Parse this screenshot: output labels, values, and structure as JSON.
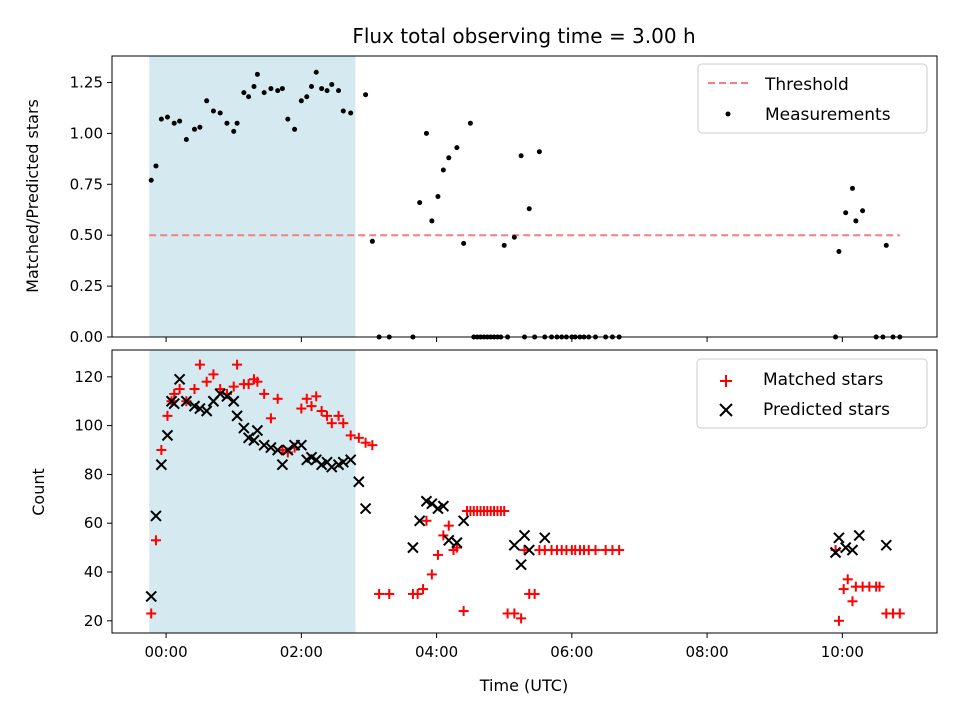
{
  "chart_data": [
    {
      "type": "scatter",
      "title": "Flux total observing time = 3.00 h",
      "xlabel": "",
      "ylabel": "Matched/Predicted stars",
      "x_unit": "hours (UTC)",
      "xlim": [
        -0.8,
        11.4
      ],
      "ylim": [
        0,
        1.38
      ],
      "yticks": [
        "0.00",
        "0.25",
        "0.50",
        "0.75",
        "1.00",
        "1.25"
      ],
      "ytick_values": [
        0,
        0.25,
        0.5,
        0.75,
        1.0,
        1.25
      ],
      "xticks": [
        "00:00",
        "02:00",
        "04:00",
        "06:00",
        "08:00",
        "10:00"
      ],
      "xtick_values": [
        0,
        2,
        4,
        6,
        8,
        10
      ],
      "shade_x": [
        -0.25,
        2.8
      ],
      "shade_color": "#d4eaf0",
      "grid": false,
      "legend": {
        "position": "top-right",
        "threshold_label": "Threshold",
        "measurements_label": "Measurements"
      },
      "threshold": {
        "name": "Threshold",
        "y": 0.5,
        "x": [
          -0.25,
          10.85
        ],
        "color": "#f28080"
      },
      "series": [
        {
          "name": "Measurements",
          "color": "#000000",
          "x": [
            -0.22,
            -0.15,
            -0.07,
            0.02,
            0.12,
            0.2,
            0.3,
            0.42,
            0.5,
            0.6,
            0.7,
            0.8,
            0.9,
            1.0,
            1.05,
            1.15,
            1.22,
            1.3,
            1.35,
            1.45,
            1.55,
            1.65,
            1.72,
            1.8,
            1.9,
            2.0,
            2.08,
            2.15,
            2.22,
            2.3,
            2.38,
            2.45,
            2.55,
            2.62,
            2.73,
            2.95,
            3.05,
            3.15,
            3.3,
            3.65,
            3.75,
            3.85,
            3.93,
            4.02,
            4.1,
            4.18,
            4.3,
            4.4,
            4.5,
            4.55,
            4.6,
            4.65,
            4.7,
            4.75,
            4.8,
            4.85,
            4.9,
            4.95,
            5.0,
            5.05,
            5.15,
            5.25,
            5.3,
            5.37,
            5.45,
            5.52,
            5.6,
            5.7,
            5.78,
            5.85,
            5.92,
            6.0,
            6.05,
            6.12,
            6.18,
            6.25,
            6.35,
            6.5,
            6.6,
            6.7,
            9.9,
            9.95,
            10.05,
            10.15,
            10.2,
            10.3,
            10.5,
            10.6,
            10.65,
            10.75,
            10.85
          ],
          "y": [
            0.77,
            0.84,
            1.07,
            1.08,
            1.05,
            1.06,
            0.97,
            1.02,
            1.03,
            1.16,
            1.11,
            1.1,
            1.05,
            1.01,
            1.05,
            1.2,
            1.18,
            1.23,
            1.29,
            1.2,
            1.22,
            1.21,
            1.22,
            1.07,
            1.02,
            1.16,
            1.18,
            1.23,
            1.3,
            1.22,
            1.21,
            1.24,
            1.21,
            1.11,
            1.1,
            1.19,
            0.47,
            0.0,
            0.0,
            0.0,
            0.66,
            1.0,
            0.57,
            0.69,
            0.82,
            0.88,
            0.93,
            0.46,
            1.05,
            0.0,
            0.0,
            0.0,
            0.0,
            0.0,
            0.0,
            0.0,
            0.0,
            0.0,
            0.45,
            0.0,
            0.49,
            0.89,
            0.0,
            0.63,
            0.0,
            0.91,
            0.0,
            0.0,
            0.0,
            0.0,
            0.0,
            0.0,
            0.0,
            0.0,
            0.0,
            0.0,
            0.0,
            0.0,
            0.0,
            0.0,
            0.0,
            0.42,
            0.61,
            0.73,
            0.57,
            0.62,
            0.0,
            0.0,
            0.45,
            0.0,
            0.0
          ]
        }
      ]
    },
    {
      "type": "scatter",
      "title": "",
      "xlabel": "Time (UTC)",
      "ylabel": "Count",
      "x_unit": "hours (UTC)",
      "xlim": [
        -0.8,
        11.4
      ],
      "ylim": [
        15,
        131
      ],
      "yticks": [
        "20",
        "40",
        "60",
        "80",
        "100",
        "120"
      ],
      "ytick_values": [
        20,
        40,
        60,
        80,
        100,
        120
      ],
      "xticks": [
        "00:00",
        "02:00",
        "04:00",
        "06:00",
        "08:00",
        "10:00"
      ],
      "xtick_values": [
        0,
        2,
        4,
        6,
        8,
        10
      ],
      "shade_x": [
        -0.25,
        2.8
      ],
      "shade_color": "#d4eaf0",
      "grid": false,
      "legend": {
        "position": "top-right",
        "matched_label": "Matched stars",
        "predicted_label": "Predicted stars"
      },
      "series": [
        {
          "name": "Matched stars",
          "marker": "plus",
          "color": "#ff0000",
          "x": [
            -0.22,
            -0.15,
            -0.07,
            0.02,
            0.08,
            0.12,
            0.2,
            0.3,
            0.42,
            0.5,
            0.6,
            0.7,
            0.8,
            0.9,
            1.0,
            1.05,
            1.15,
            1.22,
            1.3,
            1.35,
            1.45,
            1.55,
            1.65,
            1.72,
            1.8,
            1.9,
            2.0,
            2.08,
            2.15,
            2.22,
            2.3,
            2.38,
            2.45,
            2.55,
            2.62,
            2.73,
            2.85,
            2.95,
            3.05,
            3.15,
            3.3,
            3.65,
            3.72,
            3.8,
            3.85,
            3.93,
            4.02,
            4.1,
            4.18,
            4.25,
            4.3,
            4.4,
            4.45,
            4.5,
            4.55,
            4.6,
            4.65,
            4.7,
            4.75,
            4.8,
            4.85,
            4.9,
            4.95,
            5.0,
            5.05,
            5.15,
            5.25,
            5.3,
            5.37,
            5.45,
            5.52,
            5.6,
            5.7,
            5.78,
            5.85,
            5.92,
            6.0,
            6.05,
            6.12,
            6.18,
            6.25,
            6.35,
            6.5,
            6.6,
            6.7,
            9.9,
            9.95,
            10.02,
            10.08,
            10.15,
            10.2,
            10.3,
            10.4,
            10.5,
            10.55,
            10.65,
            10.75,
            10.85
          ],
          "y": [
            23,
            53,
            90,
            104,
            110,
            113,
            115,
            110,
            115,
            125,
            118,
            121,
            115,
            113,
            116,
            125,
            117,
            117,
            119,
            118,
            113,
            103,
            111,
            90,
            89,
            91,
            107,
            111,
            108,
            112,
            106,
            104,
            101,
            104,
            101,
            96,
            95,
            93,
            92,
            31,
            31,
            31,
            31,
            33,
            61,
            39,
            47,
            55,
            59,
            49,
            50,
            24,
            65,
            65,
            65,
            65,
            65,
            65,
            65,
            65,
            65,
            65,
            65,
            65,
            23,
            23,
            21,
            49,
            31,
            31,
            49,
            49,
            49,
            49,
            49,
            49,
            49,
            49,
            49,
            49,
            49,
            49,
            49,
            49,
            49,
            49,
            20,
            33,
            37,
            28,
            34,
            34,
            34,
            34,
            34,
            23,
            23,
            23
          ]
        },
        {
          "name": "Predicted stars",
          "marker": "x",
          "color": "#000000",
          "x": [
            -0.22,
            -0.15,
            -0.07,
            0.02,
            0.08,
            0.12,
            0.2,
            0.3,
            0.42,
            0.5,
            0.6,
            0.7,
            0.8,
            0.9,
            1.0,
            1.05,
            1.15,
            1.22,
            1.3,
            1.35,
            1.45,
            1.55,
            1.65,
            1.72,
            1.8,
            1.9,
            2.0,
            2.08,
            2.15,
            2.22,
            2.3,
            2.38,
            2.45,
            2.55,
            2.62,
            2.73,
            2.85,
            2.95,
            3.65,
            3.75,
            3.85,
            3.93,
            4.02,
            4.1,
            4.18,
            4.3,
            4.4,
            5.15,
            5.25,
            5.3,
            5.37,
            5.6,
            9.9,
            9.95,
            10.05,
            10.15,
            10.25,
            10.65
          ],
          "y": [
            30,
            63,
            84,
            96,
            110,
            109,
            119,
            110,
            108,
            107,
            106,
            110,
            113,
            112,
            110,
            104,
            99,
            95,
            94,
            98,
            92,
            91,
            90,
            84,
            90,
            92,
            92,
            86,
            87,
            86,
            84,
            85,
            83,
            84,
            85,
            86,
            77,
            66,
            50,
            61,
            69,
            68,
            66,
            67,
            53,
            52,
            61,
            51,
            43,
            55,
            49,
            54,
            48,
            54,
            50,
            49,
            55,
            51
          ]
        }
      ]
    }
  ]
}
